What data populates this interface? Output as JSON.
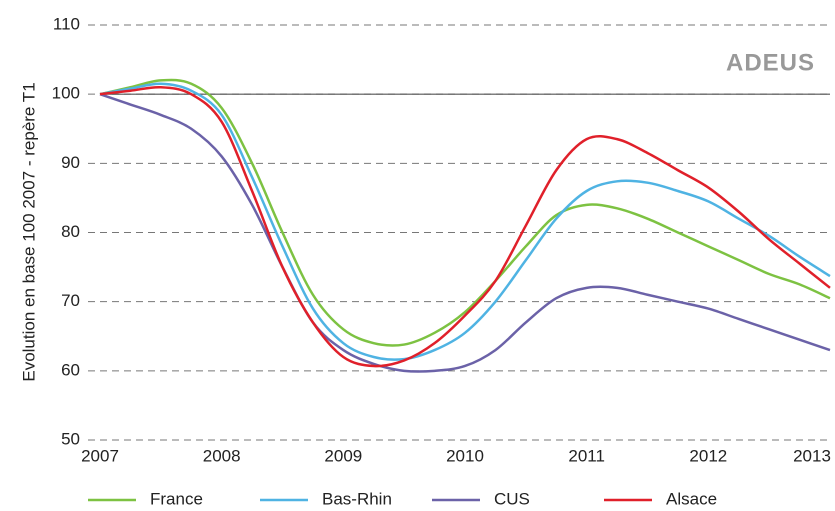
{
  "chart_data": {
    "type": "line",
    "logo": "ADEUS",
    "ylabel": "Evolution en base 100  2007 - repère T1",
    "x": [
      2007,
      2007.25,
      2007.5,
      2007.75,
      2008,
      2008.25,
      2008.5,
      2008.75,
      2009,
      2009.25,
      2009.5,
      2009.75,
      2010,
      2010.25,
      2010.5,
      2010.75,
      2011,
      2011.25,
      2011.5,
      2011.75,
      2012,
      2012.25,
      2012.5,
      2012.75,
      2013
    ],
    "series": [
      {
        "name": "France",
        "color": "#7dc242",
        "values": [
          100,
          101,
          102,
          101.5,
          98,
          90,
          80,
          71,
          66,
          64,
          63.8,
          65.5,
          68.5,
          73,
          78,
          82.5,
          84,
          83.5,
          82,
          80,
          78,
          76,
          74,
          72.5,
          70.5
        ]
      },
      {
        "name": "Bas-Rhin",
        "color": "#4fb3e3",
        "values": [
          100,
          100.8,
          101.5,
          100.5,
          97,
          88,
          78,
          69,
          64,
          62,
          61.7,
          63,
          65.5,
          70,
          76,
          82,
          86,
          87.4,
          87.2,
          86,
          84.5,
          82,
          79.5,
          76.5,
          73.7
        ]
      },
      {
        "name": "CUS",
        "color": "#6b62a8",
        "values": [
          100,
          98.5,
          97,
          95,
          91,
          84,
          75,
          67,
          63,
          61,
          60,
          60,
          60.7,
          63,
          67,
          70.5,
          72,
          72,
          71,
          70,
          69,
          67.5,
          66,
          64.5,
          63
        ]
      },
      {
        "name": "Alsace",
        "color": "#e0202a",
        "values": [
          100,
          100.5,
          101,
          100,
          96,
          86,
          75,
          67,
          62,
          60.7,
          61.5,
          64,
          68,
          73,
          81,
          89,
          93.5,
          93.5,
          91.5,
          89,
          86.5,
          83,
          79,
          75.5,
          72
        ]
      }
    ],
    "xlim": [
      2007,
      2013
    ],
    "xticks": [
      2007,
      2008,
      2009,
      2010,
      2011,
      2012,
      2013
    ],
    "ylim": [
      50,
      110
    ],
    "yticks": [
      50,
      60,
      70,
      80,
      90,
      100,
      110
    ],
    "reference_line": 100,
    "grid": true,
    "legend": "bottom"
  }
}
